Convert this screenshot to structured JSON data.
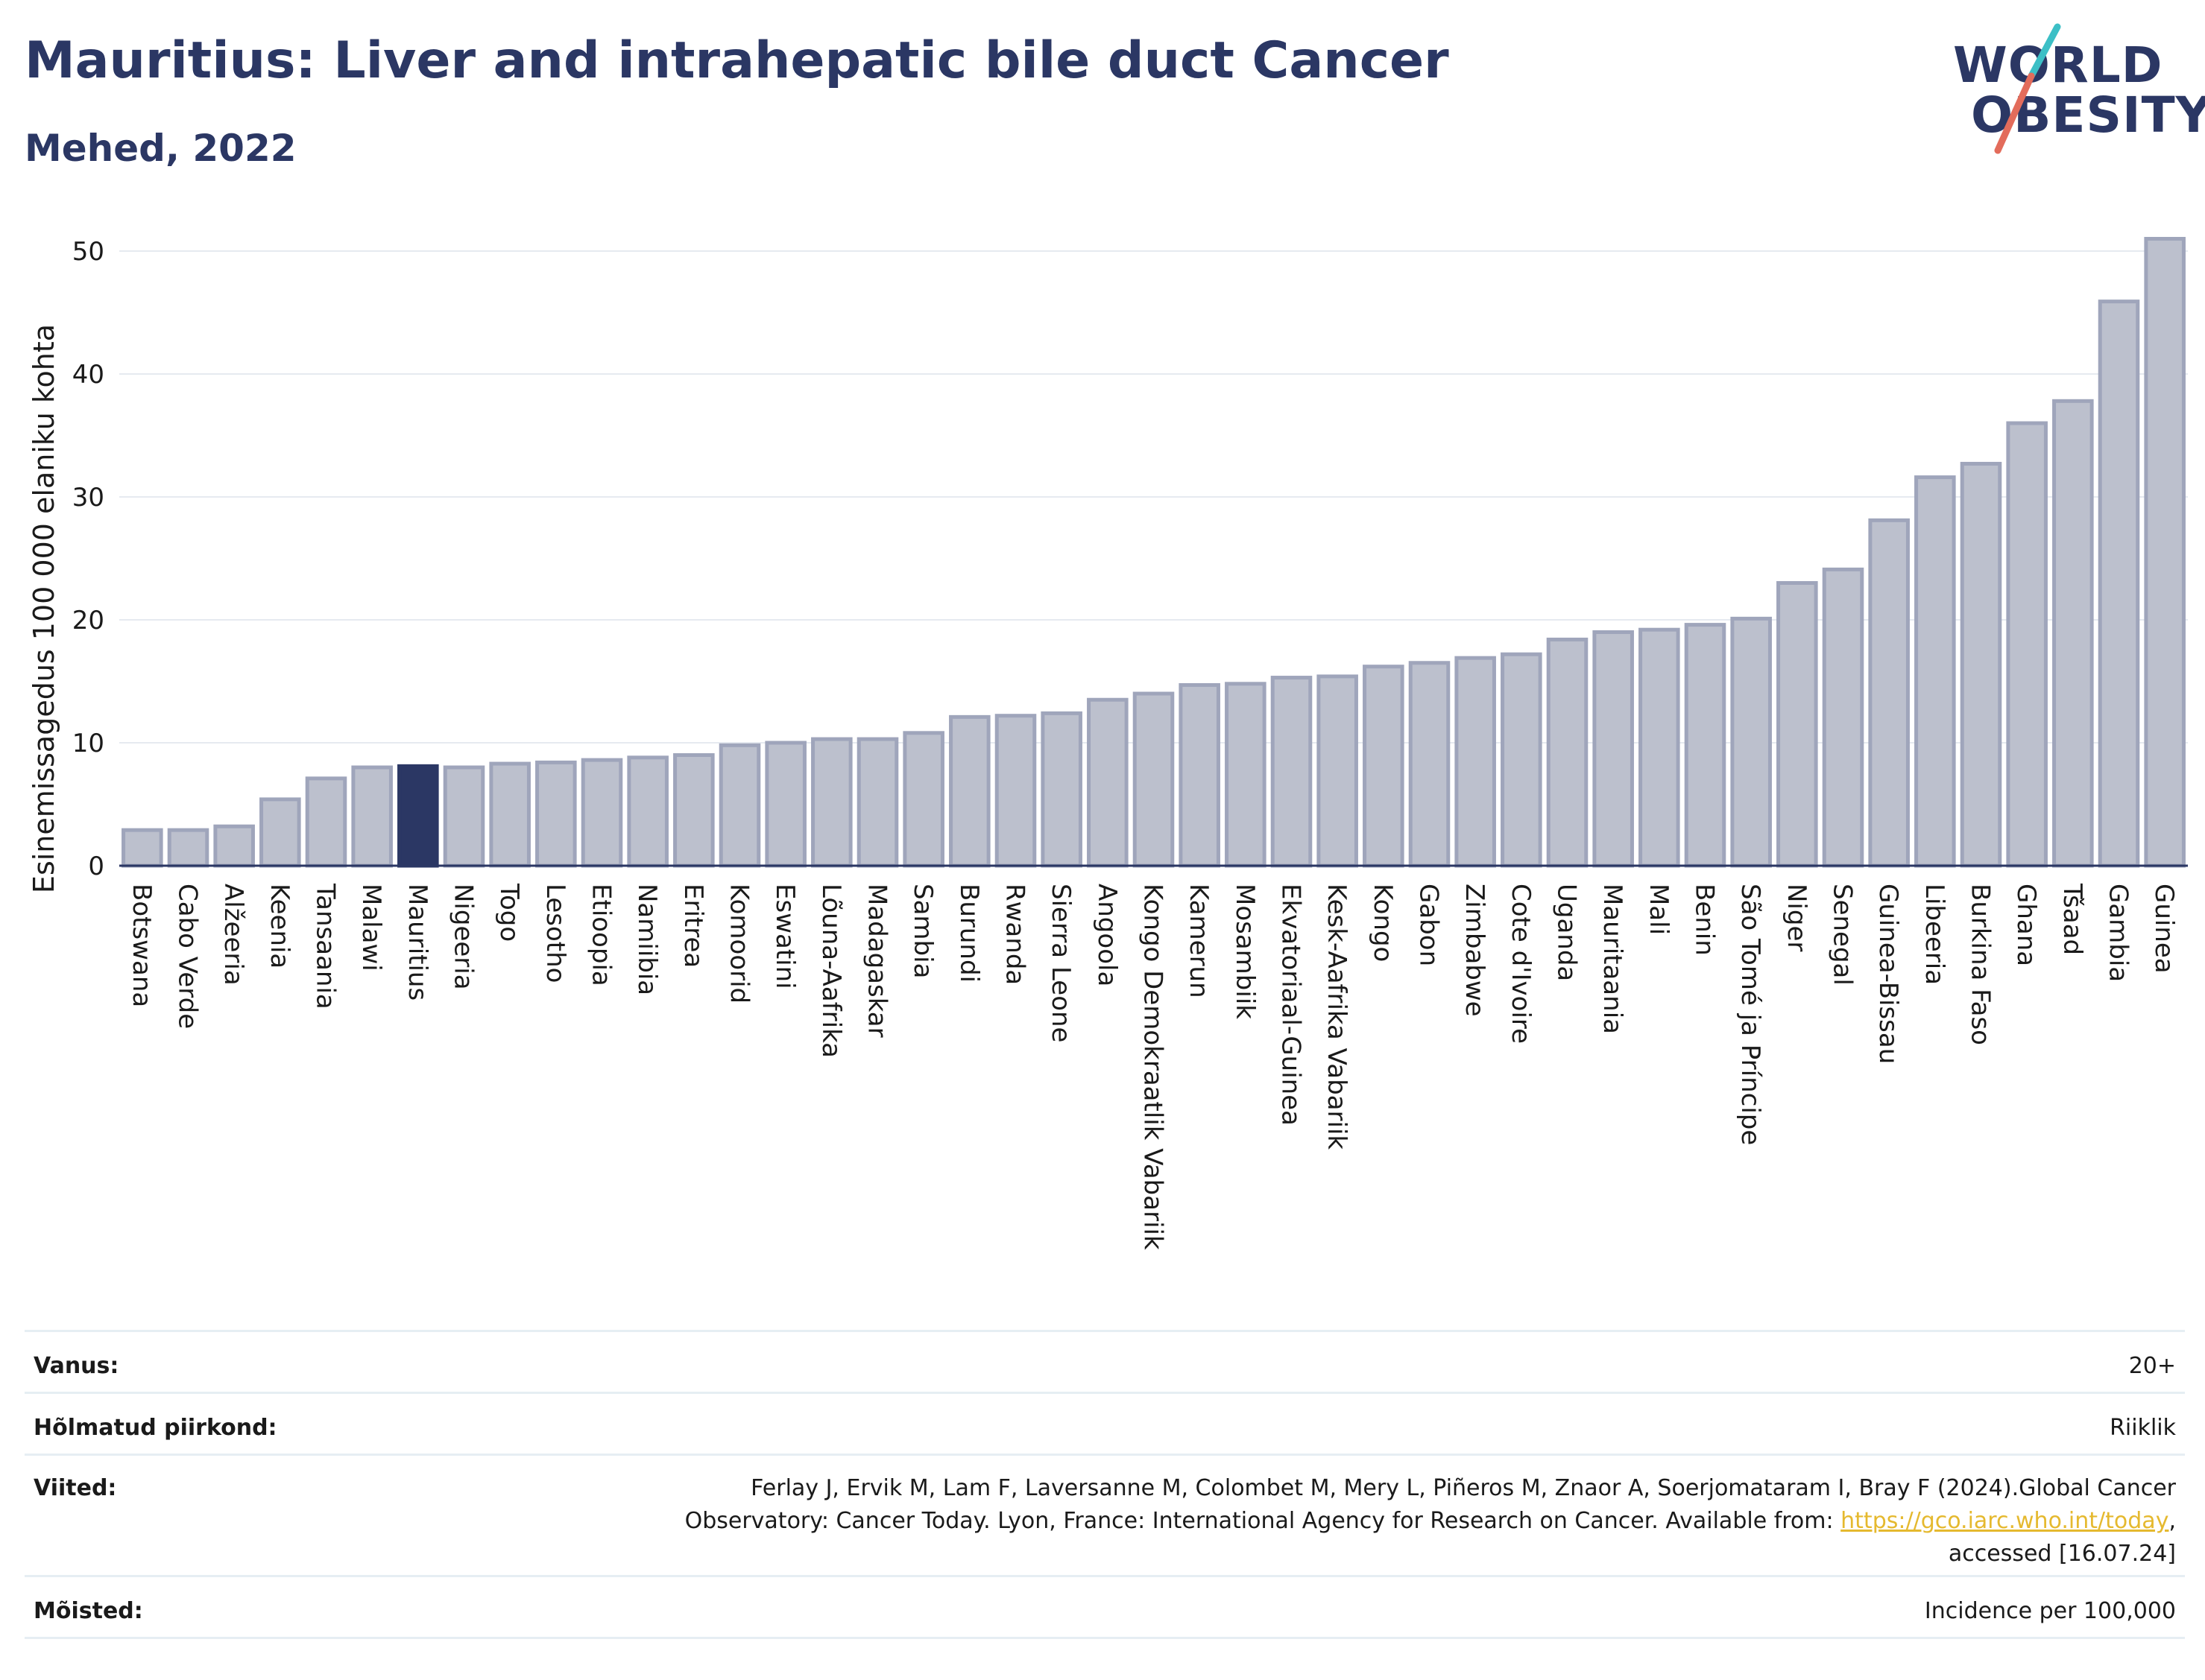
{
  "header": {
    "title": "Mauritius: Liver and intrahepatic bile duct Cancer",
    "subtitle": "Mehed, 2022"
  },
  "logo": {
    "line1": "WORLD",
    "line2": "OBESITY",
    "colors": {
      "text": "#2b3764",
      "teal": "#3cbfc6",
      "coral": "#e36c5b"
    }
  },
  "chart_data": {
    "type": "bar",
    "ylabel": "Esinemissagedus 100 000 elaniku kohta",
    "xlabel": "",
    "ylim": [
      0,
      52
    ],
    "yticks": [
      0,
      10,
      20,
      30,
      40,
      50
    ],
    "grid": true,
    "highlight": "Mauritius",
    "colors": {
      "bar": "#bcc0cd",
      "bar_edge": "#9fa5bb",
      "highlight": "#2b3764"
    },
    "categories": [
      "Botswana",
      "Cabo Verde",
      "Alžeeria",
      "Keenia",
      "Tansaania",
      "Malawi",
      "Mauritius",
      "Nigeeria",
      "Togo",
      "Lesotho",
      "Etioopia",
      "Namiibia",
      "Eritrea",
      "Komoorid",
      "Eswatini",
      "Lõuna-Aafrika",
      "Madagaskar",
      "Sambia",
      "Burundi",
      "Rwanda",
      "Sierra Leone",
      "Angoola",
      "Kongo Demokraatlik Vabariik",
      "Kamerun",
      "Mosambiik",
      "Ekvatoriaal-Guinea",
      "Kesk-Aafrika Vabariik",
      "Kongo",
      "Gabon",
      "Zimbabwe",
      "Cote d'Ivoire",
      "Uganda",
      "Mauritaania",
      "Mali",
      "Benin",
      "São Tomé ja Príncipe",
      "Niger",
      "Senegal",
      "Guinea-Bissau",
      "Libeeria",
      "Burkina Faso",
      "Ghana",
      "Tšaad",
      "Gambia",
      "Guinea"
    ],
    "values": [
      2.9,
      2.9,
      3.2,
      5.4,
      7.1,
      8.0,
      8.1,
      8.0,
      8.3,
      8.4,
      8.6,
      8.8,
      9.0,
      9.8,
      10.0,
      10.3,
      10.3,
      10.8,
      12.1,
      12.2,
      12.4,
      13.5,
      14.0,
      14.7,
      14.8,
      15.3,
      15.4,
      16.2,
      16.5,
      16.9,
      17.2,
      18.4,
      19.0,
      19.2,
      19.6,
      20.1,
      23.0,
      24.1,
      28.1,
      31.6,
      32.7,
      36.0,
      37.8,
      45.9,
      51.0
    ]
  },
  "meta": {
    "age_label": "Vanus:",
    "age_value": "20+",
    "region_label": "Hõlmatud piirkond:",
    "region_value": "Riiklik",
    "refs_label": "Viited:",
    "refs_line1": "Ferlay J, Ervik M, Lam F, Laversanne M, Colombet M, Mery L, Piñeros M, Znaor A, Soerjomataram I, Bray F (2024).Global Cancer",
    "refs_line2": "Observatory: Cancer Today. Lyon, France: International Agency for Research on Cancer. Available from:",
    "refs_link": "https://gco.iarc.who.int/today",
    "refs_line2_end": ",",
    "refs_line3": "accessed [16.07.24]",
    "def_label": "Mõisted:",
    "def_value": "Incidence per 100,000"
  }
}
